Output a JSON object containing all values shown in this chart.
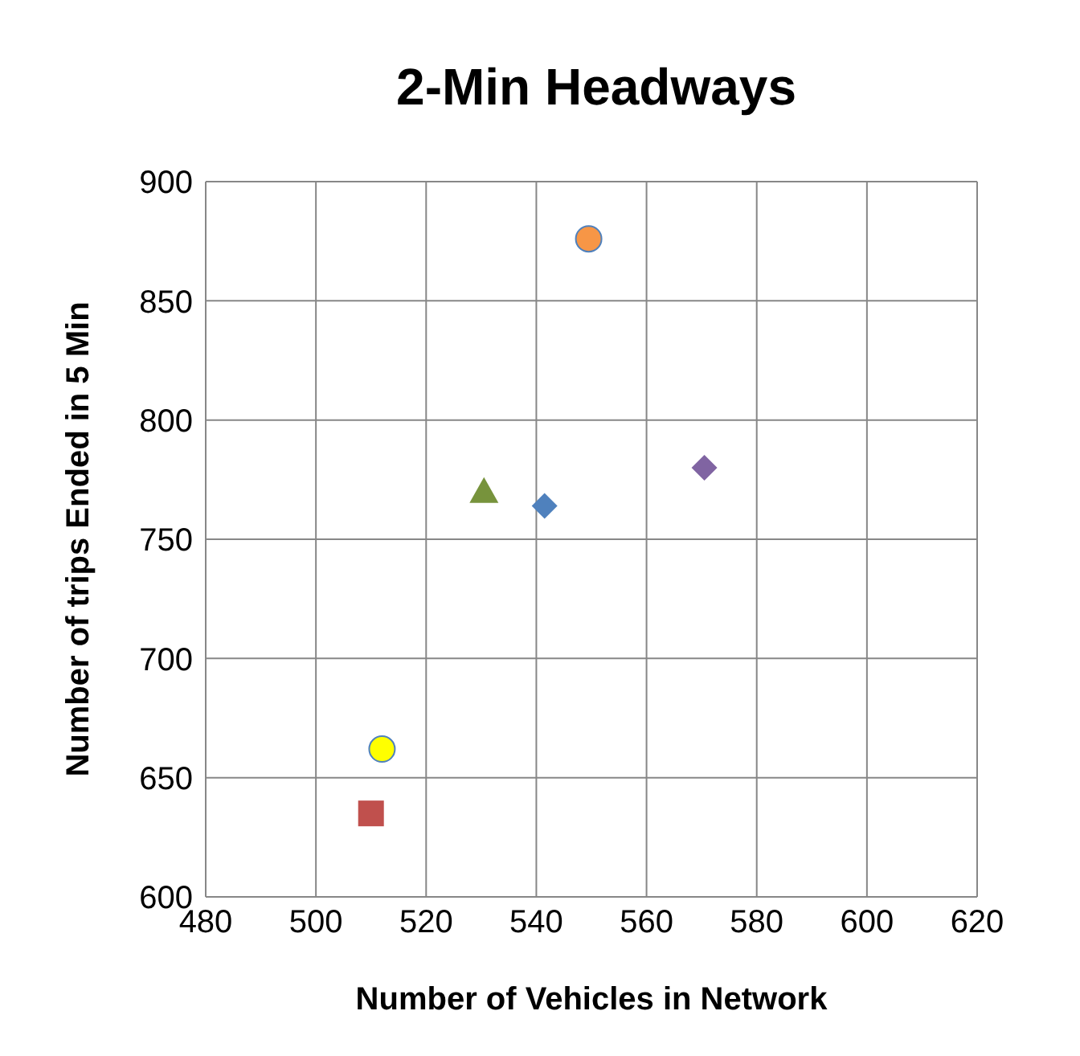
{
  "chart_data": {
    "type": "scatter",
    "title": "2-Min Headways",
    "xlabel": "Number of Vehicles in Network",
    "ylabel": "Number of trips Ended in 5 Min",
    "xlim": [
      480,
      620
    ],
    "xticks": [
      480,
      500,
      520,
      540,
      560,
      580,
      600,
      620
    ],
    "ylim": [
      600,
      900
    ],
    "yticks": [
      600,
      650,
      700,
      750,
      800,
      850,
      900
    ],
    "grid": true,
    "legend": false,
    "series": [
      {
        "x": [
          541.5
        ],
        "values": [
          764
        ],
        "color": "#4f81bd",
        "marker": "diamond"
      },
      {
        "x": [
          510
        ],
        "values": [
          635
        ],
        "color": "#c0504d",
        "marker": "square"
      },
      {
        "x": [
          530.5
        ],
        "values": [
          770
        ],
        "color": "#77933c",
        "marker": "triangle"
      },
      {
        "x": [
          570.5
        ],
        "values": [
          780
        ],
        "color": "#8064a2",
        "marker": "diamond"
      },
      {
        "x": [
          549.5
        ],
        "values": [
          876
        ],
        "color": "#f79646",
        "marker": "circle"
      },
      {
        "x": [
          512
        ],
        "values": [
          662
        ],
        "color": "#ffff00",
        "marker": "circle"
      }
    ]
  }
}
